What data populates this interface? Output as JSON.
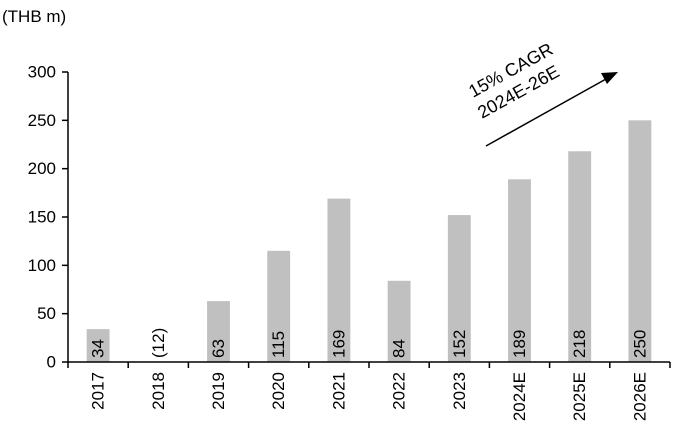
{
  "chart_data": {
    "type": "bar",
    "unit_label": "(THB m)",
    "categories": [
      "2017",
      "2018",
      "2019",
      "2020",
      "2021",
      "2022",
      "2023",
      "2024E",
      "2025E",
      "2026E"
    ],
    "values": [
      34,
      -12,
      63,
      115,
      169,
      84,
      152,
      189,
      218,
      250
    ],
    "data_labels": [
      "34",
      "(12)",
      "63",
      "115",
      "169",
      "84",
      "152",
      "189",
      "218",
      "250"
    ],
    "ylim": [
      0,
      300
    ],
    "yticks": [
      0,
      50,
      100,
      150,
      200,
      250,
      300
    ],
    "grid": false,
    "bar_color": "#c0c0c0",
    "annotation": {
      "line1": "15% CAGR",
      "line2": "2024E-26E"
    }
  }
}
